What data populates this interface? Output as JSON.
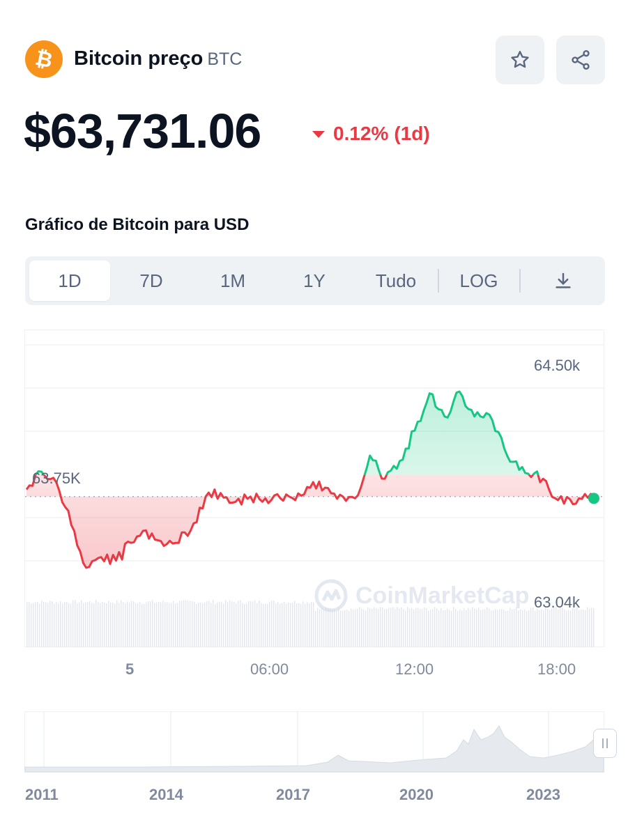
{
  "coin": {
    "name": "Bitcoin preço",
    "symbol": "BTC",
    "logo_glyph": "₿",
    "icon": "bitcoin-icon",
    "brand_color": "#f7931a"
  },
  "actions": {
    "star_icon": "star-icon",
    "share_icon": "share-icon"
  },
  "price": {
    "value": "$63,731.06",
    "change_pct": "0.12%",
    "change_period": "(1d)",
    "change_color": "#ea3943",
    "direction": "down"
  },
  "section_title": "Gráfico de Bitcoin para USD",
  "range_tabs": {
    "items": [
      "1D",
      "7D",
      "1M",
      "1Y",
      "Tudo"
    ],
    "active": "1D",
    "log_label": "LOG",
    "download_icon": "download-icon"
  },
  "chart_data": {
    "type": "line",
    "y_ticks": [
      "64.50k",
      "63.75K",
      "63.04k"
    ],
    "x_ticks": [
      "5",
      "06:00",
      "12:00",
      "18:00"
    ],
    "reference_value": 63750,
    "current_value": 63731.06,
    "up_color": "#16c784",
    "down_color": "#ea3943",
    "series": [
      {
        "x": [
          "00:00",
          "00:30",
          "01:00",
          "01:30",
          "02:00",
          "02:30",
          "03:00",
          "03:30",
          "04:00",
          "04:30",
          "05:00",
          "05:30",
          "06:00",
          "06:30",
          "07:00",
          "07:30",
          "08:00",
          "08:30",
          "09:00",
          "09:30",
          "10:00",
          "10:30",
          "11:00",
          "11:30",
          "12:00",
          "12:30",
          "13:00",
          "13:30",
          "14:00",
          "14:30",
          "15:00",
          "15:30",
          "16:00",
          "16:30",
          "17:00",
          "17:30",
          "18:00",
          "18:30",
          "19:00"
        ],
        "values": [
          63790,
          63890,
          63830,
          63590,
          63350,
          63410,
          63390,
          63490,
          63560,
          63500,
          63490,
          63560,
          63750,
          63770,
          63720,
          63750,
          63740,
          63740,
          63730,
          63800,
          63800,
          63760,
          63740,
          63980,
          63850,
          63950,
          64120,
          64330,
          64200,
          64340,
          64200,
          64210,
          64020,
          63900,
          63880,
          63790,
          63710,
          63740,
          63740
        ]
      }
    ],
    "watermark": "CoinMarketCap"
  },
  "overview": {
    "years": [
      "2011",
      "2014",
      "2017",
      "2020",
      "2023"
    ]
  }
}
